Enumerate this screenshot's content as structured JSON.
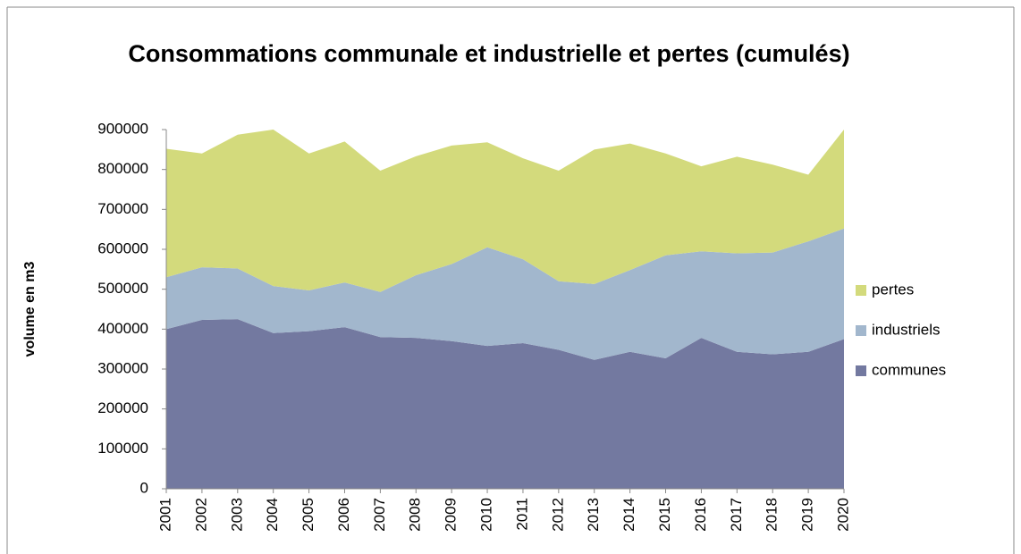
{
  "chart_data": {
    "type": "stacked_area",
    "title": "Consommations communale et industrielle et pertes (cumulés)",
    "y_label": "volume en m3",
    "categories": [
      "2001",
      "2002",
      "2003",
      "2004",
      "2005",
      "2006",
      "2007",
      "2008",
      "2009",
      "2010",
      "2011",
      "2012",
      "2013",
      "2014",
      "2015",
      "2016",
      "2017",
      "2018",
      "2019",
      "2020"
    ],
    "series": [
      {
        "name": "communes",
        "color": "#7379a0",
        "values": [
          400000,
          423000,
          425000,
          390000,
          395000,
          405000,
          380000,
          378000,
          370000,
          358000,
          365000,
          348000,
          323000,
          343000,
          327000,
          378000,
          343000,
          337000,
          343000,
          375000
        ]
      },
      {
        "name": "industriels",
        "color": "#a2b7cd",
        "values": [
          130000,
          132000,
          127000,
          118000,
          102000,
          112000,
          113000,
          157000,
          193000,
          247000,
          210000,
          172000,
          190000,
          205000,
          258000,
          217000,
          247000,
          255000,
          277000,
          277000
        ]
      },
      {
        "name": "pertes",
        "color": "#d3da7c",
        "values": [
          322000,
          285000,
          335000,
          392000,
          343000,
          353000,
          304000,
          298000,
          297000,
          263000,
          253000,
          277000,
          337000,
          317000,
          255000,
          213000,
          242000,
          220000,
          167000,
          248000
        ]
      }
    ],
    "ylim": [
      0,
      900000
    ],
    "yticks": [
      0,
      100000,
      200000,
      300000,
      400000,
      500000,
      600000,
      700000,
      800000,
      900000
    ],
    "legend": "right"
  }
}
